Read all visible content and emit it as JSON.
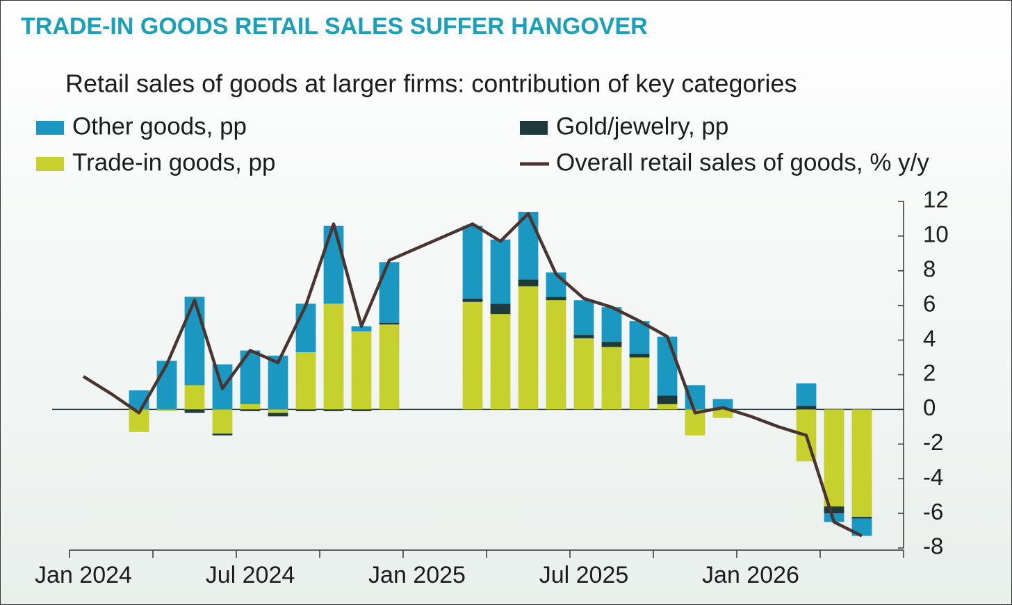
{
  "chart_data": {
    "type": "bar",
    "kicker": "TRADE-IN GOODS RETAIL SALES SUFFER HANGOVER",
    "title": "Retail sales of goods at larger firms: contribution of key categories",
    "categories": [
      "Jan 2024",
      null,
      null,
      null,
      null,
      null,
      "Jul 2024",
      null,
      null,
      null,
      null,
      null,
      "Jan 2025",
      null,
      null,
      null,
      null,
      null,
      "Jul 2025",
      null,
      null,
      null,
      null,
      null,
      "Jan 2026",
      null,
      null,
      null,
      null,
      null
    ],
    "series": [
      {
        "name": "Other goods, pp",
        "color": "#1b98c2",
        "values": [
          null,
          null,
          1.1,
          2.8,
          5.1,
          2.6,
          3.1,
          3.1,
          2.8,
          4.5,
          0.3,
          3.5,
          null,
          null,
          4.2,
          3.7,
          3.9,
          1.4,
          2.0,
          2.0,
          1.9,
          3.4,
          1.4,
          0.6,
          null,
          null,
          1.3,
          -0.5,
          -1.0,
          null
        ]
      },
      {
        "name": "Gold/jewelry, pp",
        "color": "#1f3a3d",
        "values": [
          null,
          null,
          0,
          0,
          -0.2,
          -0.1,
          -0.1,
          -0.2,
          -0.1,
          -0.1,
          -0.1,
          0.1,
          null,
          null,
          0.2,
          0.6,
          0.4,
          0.2,
          0.2,
          0.3,
          0.2,
          0.5,
          0,
          0,
          null,
          null,
          0.2,
          -0.4,
          -0.1,
          null
        ]
      },
      {
        "name": "Trade-in goods, pp",
        "color": "#c6d12e",
        "values": [
          null,
          null,
          -1.3,
          -0.1,
          1.4,
          -1.4,
          0.3,
          -0.2,
          3.3,
          6.1,
          4.5,
          4.9,
          null,
          null,
          6.2,
          5.5,
          7.1,
          6.3,
          4.1,
          3.6,
          3.0,
          0.3,
          -1.5,
          -0.5,
          null,
          null,
          -3.0,
          -5.6,
          -6.2,
          null
        ]
      },
      {
        "name": "Overall retail sales of goods, % y/y",
        "color": "#4a3431",
        "type": "line",
        "values": [
          1.9,
          0.9,
          -0.2,
          2.6,
          6.3,
          1.2,
          3.4,
          2.7,
          6.0,
          10.7,
          4.8,
          8.6,
          9.3,
          10.0,
          10.7,
          9.7,
          11.3,
          7.8,
          6.4,
          5.9,
          5.1,
          4.2,
          -0.2,
          0.1,
          -0.4,
          -1.0,
          -1.5,
          -6.5,
          -7.3,
          null
        ]
      }
    ],
    "ylim": [
      -8,
      12
    ],
    "yticks": [
      -8,
      -6,
      -4,
      -2,
      0,
      2,
      4,
      6,
      8,
      10,
      12
    ]
  }
}
